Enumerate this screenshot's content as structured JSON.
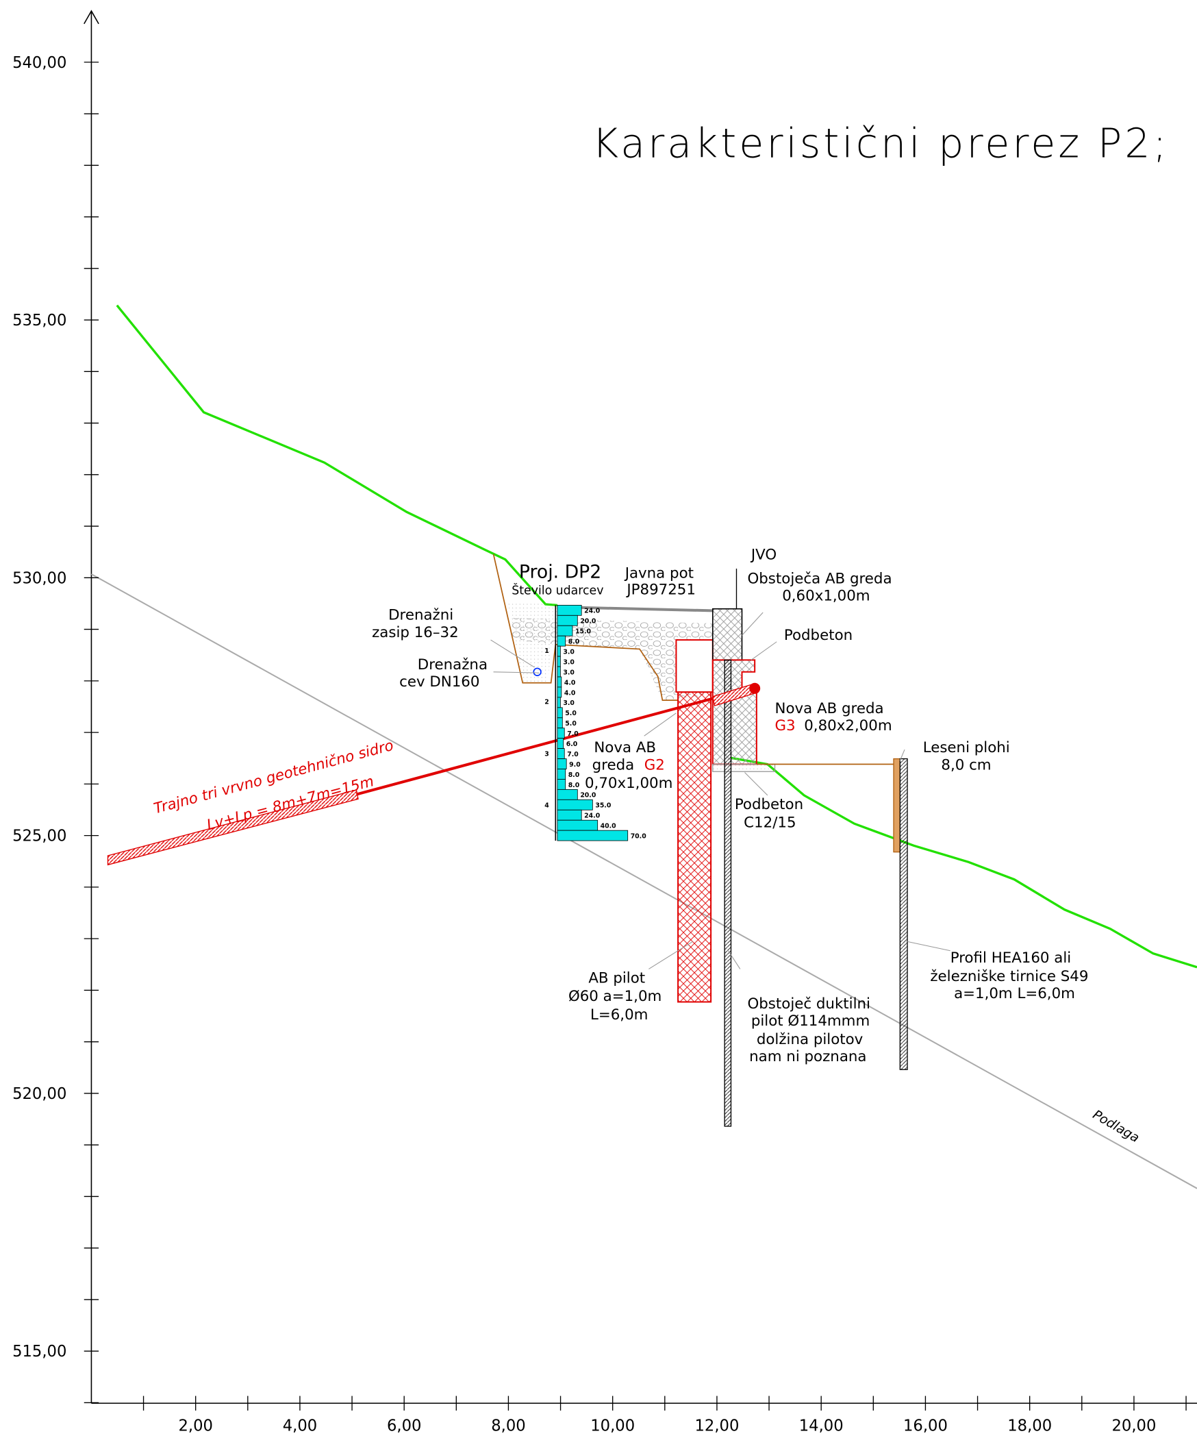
{
  "title": "Karakteristični prerez P2;",
  "y_ticks": [
    "540,00",
    "535,00",
    "530,00",
    "525,00",
    "520,00",
    "515,00"
  ],
  "x_ticks": [
    "2,00",
    "4,00",
    "6,00",
    "8,00",
    "10,00",
    "12,00",
    "14,00",
    "16,00",
    "18,00",
    "20,00"
  ],
  "labels": {
    "proj": "Proj. DP2",
    "udarci": "Število udarcev",
    "pot1": "Javna pot",
    "pot2": "JP897251",
    "jvo": "JVO",
    "obst1": "Obstoječa AB greda",
    "obst2": "0,60x1,00m",
    "podbeton1": "Podbeton",
    "dren1": "Drenažni",
    "dren2": "zasip 16–32",
    "cev1": "Drenažna",
    "cev2": "cev DN160",
    "g3a": "Nova AB greda",
    "g3b": "G3",
    "g3c": "0,80x2,00m",
    "g2a": "Nova AB",
    "g2b": "greda",
    "g2c": "G2",
    "g2d": "0,70x1,00m",
    "les1": "Leseni plohi",
    "les2": "8,0 cm",
    "podb1": "Podbeton",
    "podb2": "C12/15",
    "sidro1": "Trajno tri vrvno geotehnično sidro",
    "sidro2": "Lv+Lp = 8m+7m=15m",
    "pil1": "AB pilot",
    "pil2": "Ø60 a=1,0m",
    "pil3": "L=6,0m",
    "duk1": "Obstoječ duktilni",
    "duk2": "pilot Ø114mmm",
    "duk3": "dolžina pilotov",
    "duk4": "nam ni poznana",
    "hea1": "Profil HEA160 ali",
    "hea2": "železniške tirnice S49",
    "hea3": "a=1,0m L=6,0m",
    "podlaga": "Podlaga"
  },
  "spt_depths": [
    "1",
    "2",
    "3",
    "4"
  ],
  "spt_values": [
    "24.0",
    "20.0",
    "15.0",
    "8.0",
    "3.0",
    "3.0",
    "3.0",
    "4.0",
    "4.0",
    "3.0",
    "5.0",
    "5.0",
    "7.0",
    "6.0",
    "7.0",
    "9.0",
    "8.0",
    "8.0",
    "20.0",
    "35.0",
    "24.0",
    "40.0",
    "70.0"
  ]
}
